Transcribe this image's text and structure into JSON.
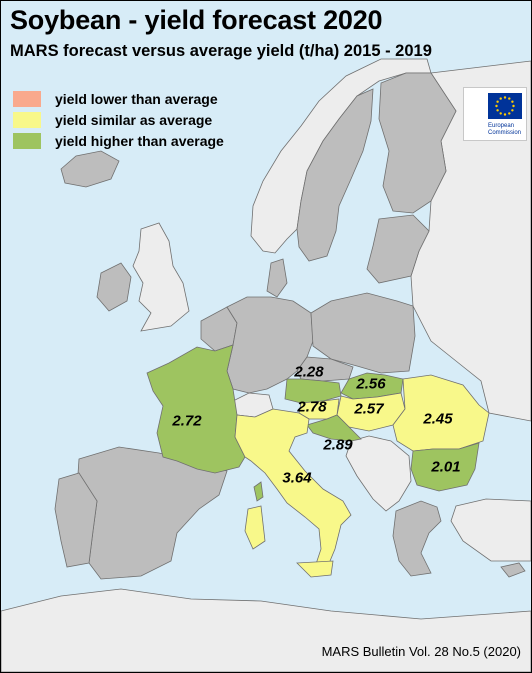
{
  "title": "Soybean - yield forecast 2020",
  "subtitle": "MARS forecast versus average yield (t/ha) 2015 - 2019",
  "legend": [
    {
      "label": "yield lower than average",
      "color": "#f9a98d"
    },
    {
      "label": "yield similar as average",
      "color": "#f8f88a"
    },
    {
      "label": "yield higher than average",
      "color": "#9ec460"
    }
  ],
  "logo": {
    "line1": "European",
    "line2": "Commission"
  },
  "regions": [
    {
      "name": "France",
      "value": "2.72",
      "category": "higher"
    },
    {
      "name": "Austria",
      "value": "2.28",
      "category": "higher"
    },
    {
      "name": "Slovakia",
      "value": "2.56",
      "category": "higher"
    },
    {
      "name": "Hungary",
      "value": "2.57",
      "category": "similar"
    },
    {
      "name": "Romania",
      "value": "2.45",
      "category": "similar"
    },
    {
      "name": "Slovenia",
      "value": "2.78",
      "category": "similar"
    },
    {
      "name": "Croatia",
      "value": "2.89",
      "category": "higher"
    },
    {
      "name": "Italy",
      "value": "3.64",
      "category": "similar"
    },
    {
      "name": "Bulgaria",
      "value": "2.01",
      "category": "higher"
    }
  ],
  "colors": {
    "sea": "#d7ecf7",
    "non_eu": "#ededed",
    "eu_no_data": "#bdbdbd",
    "border": "#707070"
  },
  "footer": "MARS Bulletin Vol. 28 No.5 (2020)"
}
